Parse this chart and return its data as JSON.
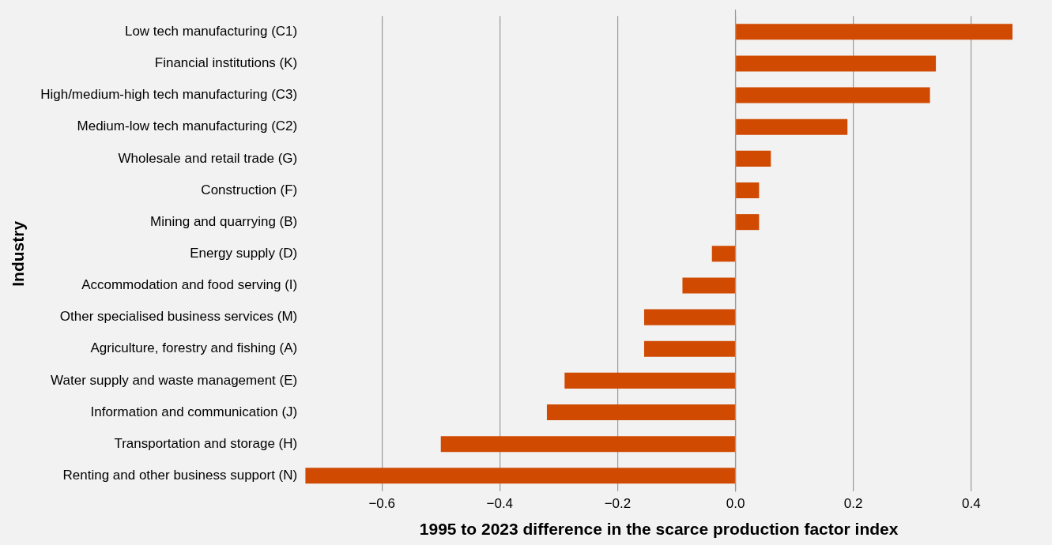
{
  "chart_data": {
    "type": "bar",
    "orientation": "horizontal",
    "xlabel": "1995 to 2023 difference in the scarce production factor index",
    "ylabel": "Industry",
    "categories": [
      "Low tech manufacturing (C1)",
      "Financial institutions (K)",
      "High/medium-high tech manufacturing (C3)",
      "Medium-low tech manufacturing (C2)",
      "Wholesale and retail trade (G)",
      "Construction (F)",
      "Mining and quarrying (B)",
      "Energy supply (D)",
      "Accommodation and food serving (I)",
      "Other specialised business services (M)",
      "Agriculture, forestry and fishing (A)",
      "Water supply and waste management (E)",
      "Information and communication (J)",
      "Transportation and storage (H)",
      "Renting and other business support (N)"
    ],
    "values": [
      0.47,
      0.34,
      0.33,
      0.19,
      0.06,
      0.04,
      0.04,
      -0.04,
      -0.09,
      -0.155,
      -0.155,
      -0.29,
      -0.32,
      -0.5,
      -0.73
    ],
    "color": "#d04a02",
    "xticks": [
      {
        "value": -0.6,
        "label": "−0.6"
      },
      {
        "value": -0.4,
        "label": "−0.4"
      },
      {
        "value": -0.2,
        "label": "−0.2"
      },
      {
        "value": 0,
        "label": "0.0"
      },
      {
        "value": 0.2,
        "label": "0.2"
      },
      {
        "value": 0.4,
        "label": "0.4"
      }
    ],
    "xlim": [
      -0.73,
      0.47
    ],
    "grid": "x"
  }
}
